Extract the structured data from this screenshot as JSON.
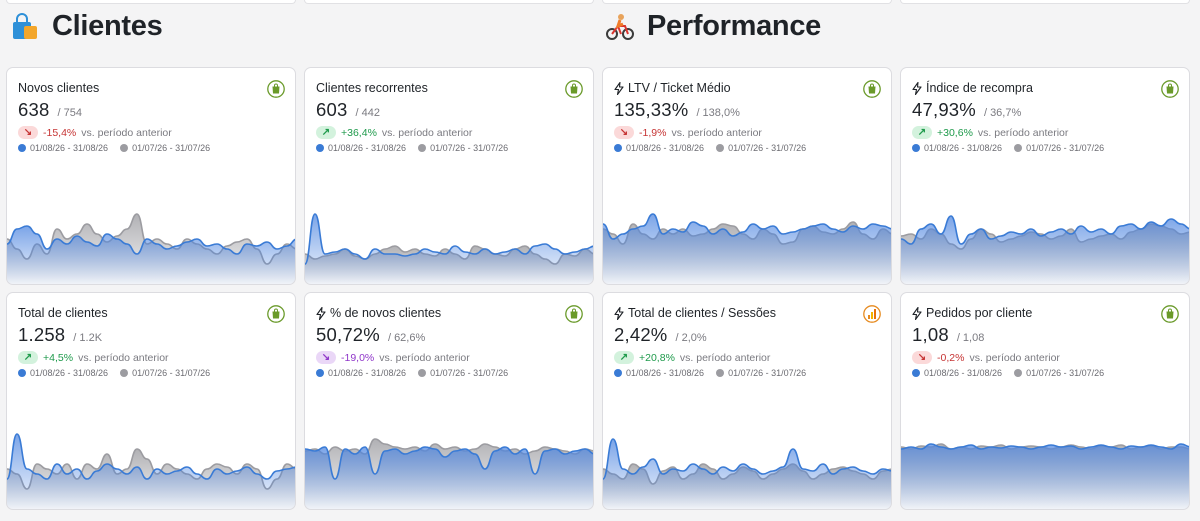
{
  "sections": [
    {
      "title": "Clientes",
      "icon": "shopping-bag-icon"
    },
    {
      "title": "Performance",
      "icon": "cyclist-icon"
    }
  ],
  "legend": {
    "current": "01/08/26 - 31/08/26",
    "previous": "01/07/26 - 31/07/26"
  },
  "vs_text": "vs. período anterior",
  "colors": {
    "current": "#3a7bd5",
    "previous": "#9c9ca1",
    "shopify": "#6a9a2a"
  },
  "cards": [
    {
      "title": "Novos clientes",
      "bolt": false,
      "value": "638",
      "prev": "/ 754",
      "delta": "-15,4%",
      "tone": "red",
      "dir": "down",
      "badge": "shopify-icon",
      "cur": [
        40,
        55,
        58,
        50,
        35,
        45,
        40,
        48,
        42,
        38,
        50,
        45,
        40,
        30,
        45,
        40,
        35,
        38,
        42,
        45,
        38,
        40,
        35,
        30,
        40,
        38,
        42,
        35,
        38,
        45
      ],
      "old": [
        45,
        35,
        25,
        40,
        30,
        55,
        45,
        50,
        60,
        50,
        42,
        48,
        55,
        70,
        40,
        45,
        40,
        35,
        45,
        40,
        35,
        30,
        38,
        42,
        45,
        35,
        20,
        30,
        40,
        35
      ]
    },
    {
      "title": "Clientes recorrentes",
      "bolt": false,
      "value": "603",
      "prev": "/ 442",
      "delta": "+36,4%",
      "tone": "green",
      "dir": "up",
      "badge": "shopify-icon",
      "cur": [
        20,
        70,
        30,
        32,
        35,
        30,
        25,
        35,
        30,
        30,
        28,
        30,
        35,
        32,
        30,
        38,
        32,
        30,
        35,
        30,
        32,
        35,
        30,
        38,
        40,
        35,
        30,
        32,
        35,
        38
      ],
      "old": [
        30,
        25,
        28,
        30,
        35,
        28,
        25,
        30,
        35,
        38,
        32,
        35,
        30,
        28,
        35,
        30,
        25,
        38,
        35,
        30,
        28,
        35,
        38,
        30,
        25,
        20,
        30,
        28,
        35,
        30
      ]
    },
    {
      "title": "LTV / Ticket Médio",
      "bolt": true,
      "value": "135,33%",
      "prev": "/ 138,0%",
      "delta": "-1,9%",
      "tone": "red",
      "dir": "down",
      "badge": "shopify-icon",
      "cur": [
        60,
        45,
        50,
        55,
        58,
        70,
        50,
        55,
        52,
        62,
        58,
        50,
        55,
        48,
        52,
        60,
        55,
        58,
        50,
        52,
        55,
        58,
        60,
        55,
        52,
        58,
        55,
        60,
        58,
        55
      ],
      "old": [
        55,
        50,
        40,
        60,
        50,
        45,
        55,
        50,
        55,
        48,
        50,
        55,
        60,
        58,
        50,
        45,
        55,
        50,
        40,
        42,
        55,
        58,
        52,
        50,
        55,
        62,
        50,
        45,
        55,
        50
      ]
    },
    {
      "title": "Índice de recompra",
      "bolt": true,
      "value": "47,93%",
      "prev": "/ 36,7%",
      "delta": "+30,6%",
      "tone": "green",
      "dir": "up",
      "badge": "shopify-icon",
      "cur": [
        45,
        40,
        55,
        60,
        50,
        68,
        40,
        50,
        55,
        45,
        48,
        52,
        50,
        55,
        48,
        52,
        55,
        50,
        58,
        52,
        55,
        50,
        58,
        60,
        55,
        62,
        58,
        65,
        60,
        55
      ],
      "old": [
        48,
        50,
        45,
        55,
        50,
        40,
        35,
        45,
        55,
        50,
        42,
        45,
        48,
        52,
        50,
        45,
        48,
        55,
        42,
        45,
        48,
        50,
        45,
        52,
        55,
        60,
        58,
        55,
        50,
        52
      ]
    },
    {
      "title": "Total de clientes",
      "bolt": false,
      "value": "1.258",
      "prev": "/ 1.2K",
      "delta": "+4,5%",
      "tone": "green",
      "dir": "up",
      "badge": "shopify-icon",
      "cur": [
        30,
        75,
        40,
        35,
        30,
        45,
        35,
        40,
        30,
        38,
        45,
        40,
        35,
        42,
        30,
        40,
        35,
        38,
        42,
        35,
        30,
        40,
        35,
        38,
        42,
        35,
        30,
        38,
        40,
        42
      ],
      "old": [
        40,
        35,
        20,
        45,
        40,
        35,
        45,
        30,
        45,
        40,
        55,
        35,
        40,
        60,
        50,
        35,
        45,
        40,
        35,
        30,
        40,
        45,
        42,
        35,
        45,
        40,
        20,
        30,
        45,
        40
      ]
    },
    {
      "title": "% de novos clientes",
      "bolt": true,
      "value": "50,72%",
      "prev": "/ 62,6%",
      "delta": "-19,0%",
      "tone": "purple",
      "dir": "down",
      "badge": "shopify-icon",
      "cur": [
        60,
        58,
        62,
        30,
        60,
        55,
        62,
        35,
        58,
        60,
        55,
        58,
        62,
        60,
        52,
        58,
        60,
        55,
        40,
        58,
        62,
        55,
        60,
        35,
        58,
        60,
        55,
        58,
        60,
        55
      ],
      "old": [
        58,
        60,
        55,
        62,
        58,
        60,
        55,
        70,
        65,
        62,
        60,
        62,
        58,
        65,
        60,
        62,
        58,
        60,
        65,
        62,
        58,
        60,
        55,
        58,
        62,
        60,
        58,
        55,
        60,
        58
      ]
    },
    {
      "title": "Total de clientes / Sessões",
      "bolt": true,
      "value": "2,42%",
      "prev": "/ 2,0%",
      "delta": "+20,8%",
      "tone": "green",
      "dir": "up",
      "badge": "analytics-icon",
      "cur": [
        30,
        70,
        40,
        35,
        42,
        50,
        35,
        40,
        38,
        45,
        40,
        35,
        42,
        38,
        45,
        40,
        35,
        38,
        42,
        60,
        40,
        38,
        45,
        35,
        40,
        42,
        38,
        35,
        40,
        38
      ],
      "old": [
        40,
        35,
        30,
        45,
        40,
        25,
        38,
        42,
        30,
        35,
        45,
        40,
        30,
        35,
        42,
        38,
        30,
        35,
        40,
        45,
        38,
        30,
        35,
        40,
        42,
        38,
        35,
        30,
        38,
        40
      ]
    },
    {
      "title": "Pedidos por cliente",
      "bolt": true,
      "value": "1,08",
      "prev": "/ 1,08",
      "delta": "-0,2%",
      "tone": "red",
      "dir": "down",
      "badge": "shopify-icon",
      "cur": [
        60,
        62,
        60,
        65,
        62,
        60,
        62,
        64,
        60,
        62,
        61,
        63,
        62,
        60,
        62,
        64,
        62,
        63,
        60,
        62,
        64,
        62,
        60,
        63,
        62,
        64,
        62,
        60,
        65,
        62
      ],
      "old": [
        62,
        60,
        63,
        62,
        65,
        60,
        62,
        60,
        63,
        62,
        64,
        60,
        62,
        63,
        62,
        60,
        62,
        64,
        62,
        60,
        63,
        62,
        64,
        60,
        62,
        63,
        60,
        62,
        62,
        60
      ]
    }
  ]
}
